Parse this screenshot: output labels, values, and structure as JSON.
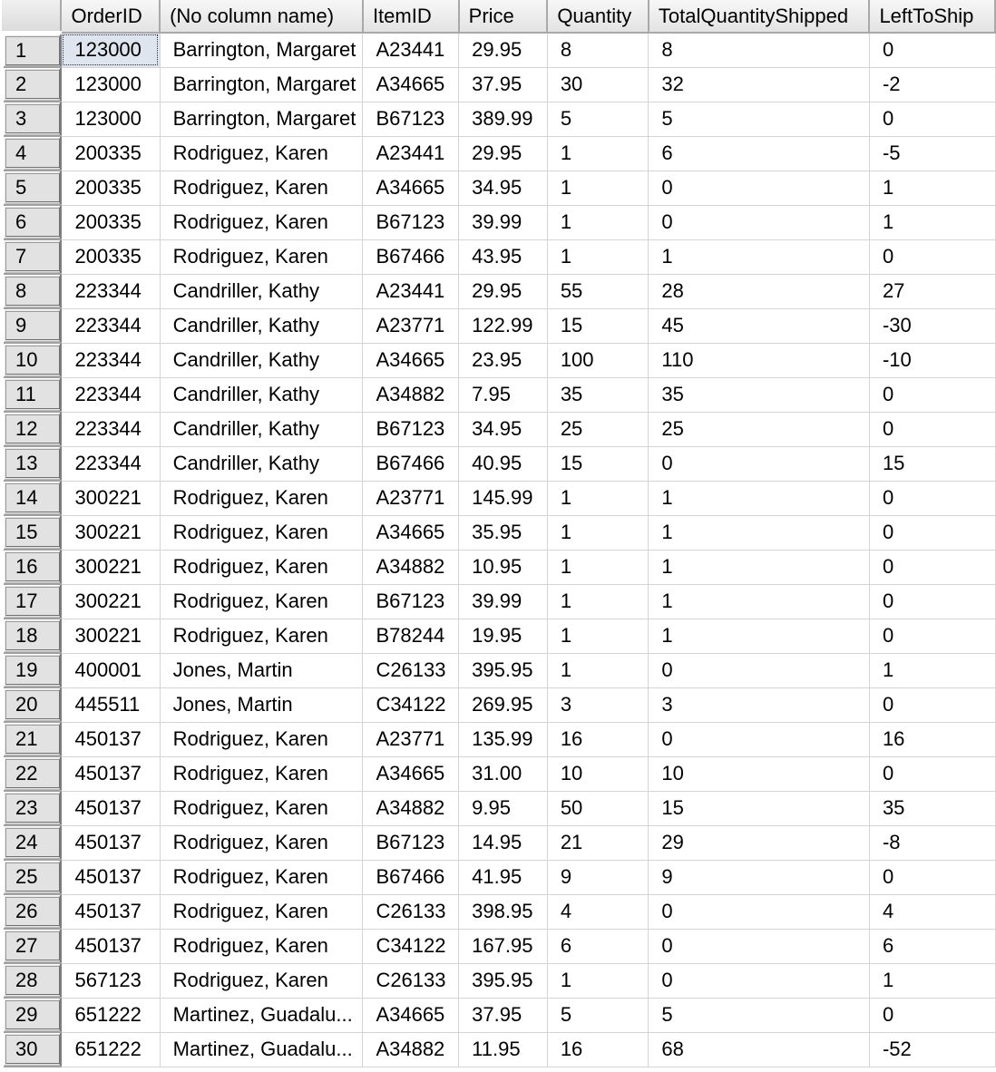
{
  "results_grid": {
    "columns": [
      "OrderID",
      "(No column name)",
      "ItemID",
      "Price",
      "Quantity",
      "TotalQuantityShipped",
      "LeftToShip"
    ],
    "rows": [
      {
        "n": "1",
        "cells": [
          "123000",
          "Barrington, Margaret",
          "A23441",
          "29.95",
          "8",
          "8",
          "0"
        ]
      },
      {
        "n": "2",
        "cells": [
          "123000",
          "Barrington, Margaret",
          "A34665",
          "37.95",
          "30",
          "32",
          "-2"
        ]
      },
      {
        "n": "3",
        "cells": [
          "123000",
          "Barrington, Margaret",
          "B67123",
          "389.99",
          "5",
          "5",
          "0"
        ]
      },
      {
        "n": "4",
        "cells": [
          "200335",
          "Rodriguez, Karen",
          "A23441",
          "29.95",
          "1",
          "6",
          "-5"
        ]
      },
      {
        "n": "5",
        "cells": [
          "200335",
          "Rodriguez, Karen",
          "A34665",
          "34.95",
          "1",
          "0",
          "1"
        ]
      },
      {
        "n": "6",
        "cells": [
          "200335",
          "Rodriguez, Karen",
          "B67123",
          "39.99",
          "1",
          "0",
          "1"
        ]
      },
      {
        "n": "7",
        "cells": [
          "200335",
          "Rodriguez, Karen",
          "B67466",
          "43.95",
          "1",
          "1",
          "0"
        ]
      },
      {
        "n": "8",
        "cells": [
          "223344",
          "Candriller, Kathy",
          "A23441",
          "29.95",
          "55",
          "28",
          "27"
        ]
      },
      {
        "n": "9",
        "cells": [
          "223344",
          "Candriller, Kathy",
          "A23771",
          "122.99",
          "15",
          "45",
          "-30"
        ]
      },
      {
        "n": "10",
        "cells": [
          "223344",
          "Candriller, Kathy",
          "A34665",
          "23.95",
          "100",
          "110",
          "-10"
        ]
      },
      {
        "n": "11",
        "cells": [
          "223344",
          "Candriller, Kathy",
          "A34882",
          "7.95",
          "35",
          "35",
          "0"
        ]
      },
      {
        "n": "12",
        "cells": [
          "223344",
          "Candriller, Kathy",
          "B67123",
          "34.95",
          "25",
          "25",
          "0"
        ]
      },
      {
        "n": "13",
        "cells": [
          "223344",
          "Candriller, Kathy",
          "B67466",
          "40.95",
          "15",
          "0",
          "15"
        ]
      },
      {
        "n": "14",
        "cells": [
          "300221",
          "Rodriguez, Karen",
          "A23771",
          "145.99",
          "1",
          "1",
          "0"
        ]
      },
      {
        "n": "15",
        "cells": [
          "300221",
          "Rodriguez, Karen",
          "A34665",
          "35.95",
          "1",
          "1",
          "0"
        ]
      },
      {
        "n": "16",
        "cells": [
          "300221",
          "Rodriguez, Karen",
          "A34882",
          "10.95",
          "1",
          "1",
          "0"
        ]
      },
      {
        "n": "17",
        "cells": [
          "300221",
          "Rodriguez, Karen",
          "B67123",
          "39.99",
          "1",
          "1",
          "0"
        ]
      },
      {
        "n": "18",
        "cells": [
          "300221",
          "Rodriguez, Karen",
          "B78244",
          "19.95",
          "1",
          "1",
          "0"
        ]
      },
      {
        "n": "19",
        "cells": [
          "400001",
          "Jones, Martin",
          "C26133",
          "395.95",
          "1",
          "0",
          "1"
        ]
      },
      {
        "n": "20",
        "cells": [
          "445511",
          "Jones, Martin",
          "C34122",
          "269.95",
          "3",
          "3",
          "0"
        ]
      },
      {
        "n": "21",
        "cells": [
          "450137",
          "Rodriguez, Karen",
          "A23771",
          "135.99",
          "16",
          "0",
          "16"
        ]
      },
      {
        "n": "22",
        "cells": [
          "450137",
          "Rodriguez, Karen",
          "A34665",
          "31.00",
          "10",
          "10",
          "0"
        ]
      },
      {
        "n": "23",
        "cells": [
          "450137",
          "Rodriguez, Karen",
          "A34882",
          "9.95",
          "50",
          "15",
          "35"
        ]
      },
      {
        "n": "24",
        "cells": [
          "450137",
          "Rodriguez, Karen",
          "B67123",
          "14.95",
          "21",
          "29",
          "-8"
        ]
      },
      {
        "n": "25",
        "cells": [
          "450137",
          "Rodriguez, Karen",
          "B67466",
          "41.95",
          "9",
          "9",
          "0"
        ]
      },
      {
        "n": "26",
        "cells": [
          "450137",
          "Rodriguez, Karen",
          "C26133",
          "398.95",
          "4",
          "0",
          "4"
        ]
      },
      {
        "n": "27",
        "cells": [
          "450137",
          "Rodriguez, Karen",
          "C34122",
          "167.95",
          "6",
          "0",
          "6"
        ]
      },
      {
        "n": "28",
        "cells": [
          "567123",
          "Rodriguez, Karen",
          "C26133",
          "395.95",
          "1",
          "0",
          "1"
        ]
      },
      {
        "n": "29",
        "cells": [
          "651222",
          "Martinez, Guadalu...",
          "A34665",
          "37.95",
          "5",
          "5",
          "0"
        ]
      },
      {
        "n": "30",
        "cells": [
          "651222",
          "Martinez, Guadalu...",
          "A34882",
          "11.95",
          "16",
          "68",
          "-52"
        ]
      }
    ]
  }
}
